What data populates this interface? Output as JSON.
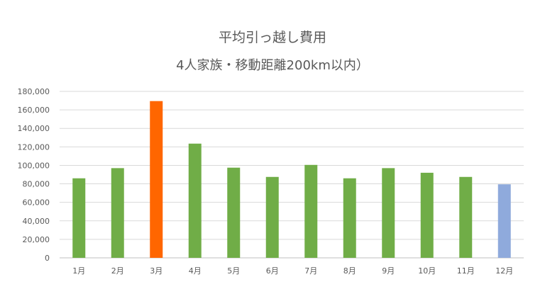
{
  "chart_data": {
    "type": "bar",
    "title": "平均引っ越し費用",
    "subtitle": "4人家族・移動距離200km以内）",
    "xlabel": "",
    "ylabel": "",
    "categories": [
      "1月",
      "2月",
      "3月",
      "4月",
      "5月",
      "6月",
      "7月",
      "8月",
      "9月",
      "10月",
      "11月",
      "12月"
    ],
    "values": [
      86000,
      97000,
      169500,
      123500,
      97500,
      87500,
      100500,
      86000,
      97000,
      92000,
      87500,
      79500
    ],
    "bar_colors": [
      "#70ad47",
      "#70ad47",
      "#ff6600",
      "#70ad47",
      "#70ad47",
      "#70ad47",
      "#70ad47",
      "#70ad47",
      "#70ad47",
      "#70ad47",
      "#70ad47",
      "#8faadc"
    ],
    "ylim": [
      0,
      180000
    ],
    "yticks": [
      "0",
      "20,000",
      "40,000",
      "60,000",
      "80,000",
      "100,000",
      "120,000",
      "140,000",
      "160,000",
      "180,000"
    ],
    "grid": true,
    "legend": "none"
  }
}
